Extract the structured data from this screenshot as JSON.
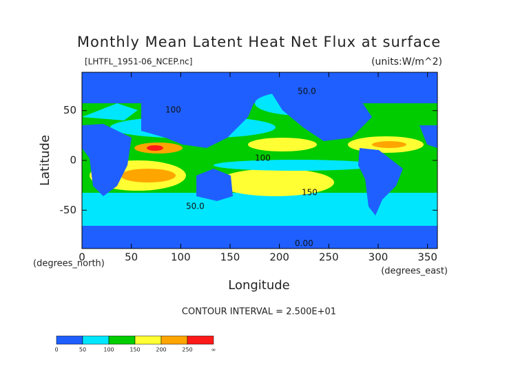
{
  "chart_data": {
    "type": "contour",
    "title": "Monthly Mean Latent Heat Net Flux at surface",
    "subtitle": "[LHTFL_1951-06_NCEP.nc]",
    "units": "(units:W/m^2)",
    "x_label": "Longitude",
    "y_label": "Latitude",
    "x_unit": "(degrees_east)",
    "y_unit": "(degrees_north)",
    "note": "CONTOUR INTERVAL = 2.500E+01",
    "annotations": [
      "50.0",
      "100",
      "150",
      "50.0",
      "0.00",
      "100"
    ],
    "xlim": [
      0,
      360
    ],
    "xticks": [
      0,
      50,
      100,
      150,
      200,
      250,
      300,
      350
    ],
    "ylim": [
      -88.5,
      88.5
    ],
    "yticks": [
      -50,
      0,
      50
    ],
    "colorbar": {
      "ticks": [
        0,
        50,
        100,
        150,
        200,
        250,
        {
          "value": "inf",
          "label": "∞"
        }
      ],
      "colors": [
        "#1f5fff",
        "#00e6ff",
        "#00cc00",
        "#ffff33",
        "#ffa500",
        "#ff1a1a"
      ]
    }
  }
}
